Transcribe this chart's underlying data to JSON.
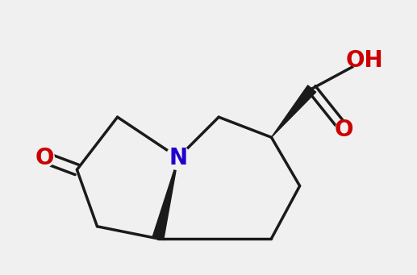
{
  "bg_color": "#f0f0f0",
  "bond_color": "#1a1a1a",
  "N_color": "#2200cc",
  "O_color": "#cc0000",
  "line_width": 2.5
}
